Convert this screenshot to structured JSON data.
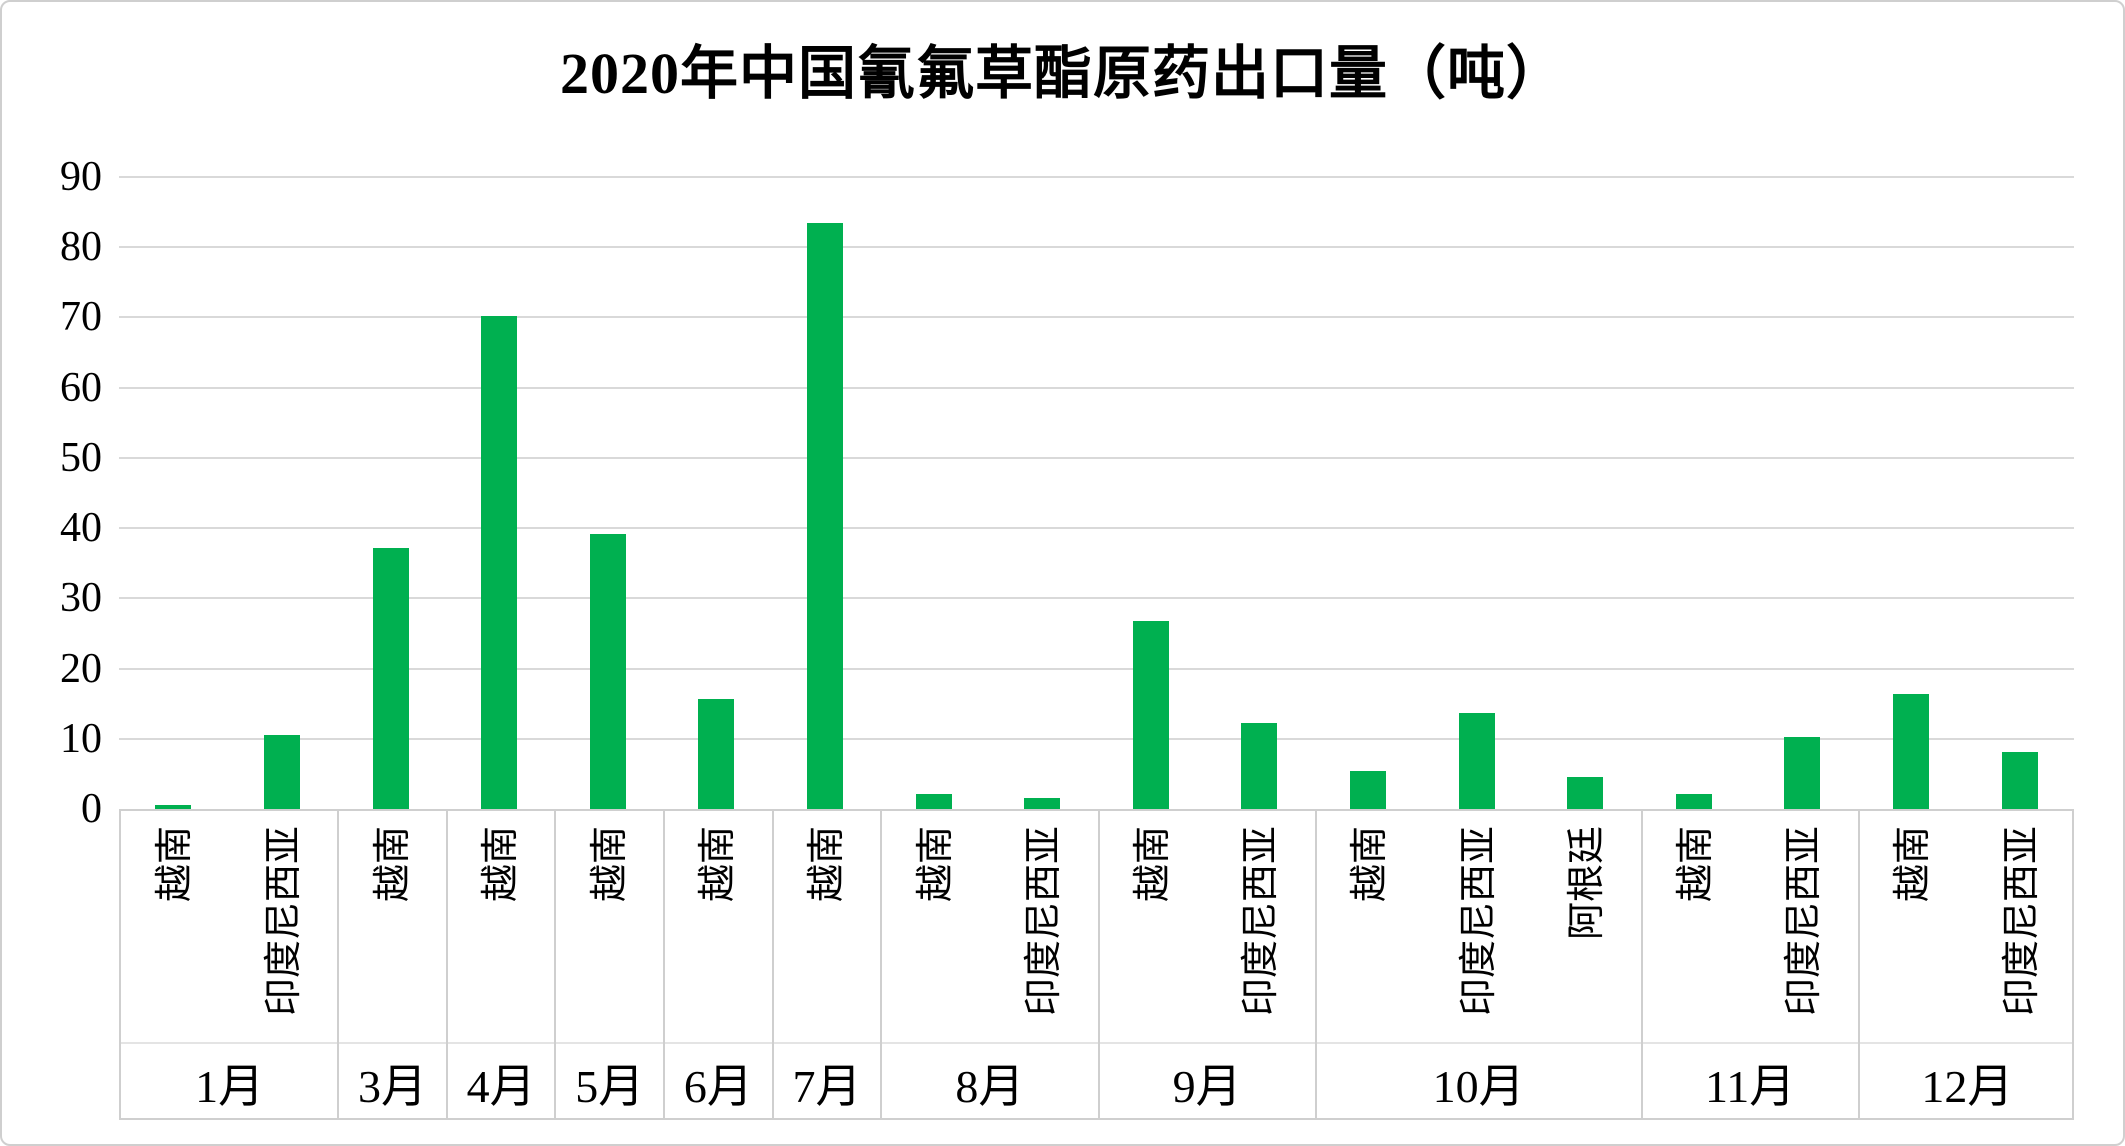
{
  "chart_data": {
    "type": "bar",
    "title": "2020年中国氰氟草酯原药出口量（吨）",
    "ylabel": "",
    "xlabel": "",
    "ylim": [
      0,
      90
    ],
    "ytick_step": 10,
    "ytick_labels": [
      "0",
      "10",
      "20",
      "30",
      "40",
      "50",
      "60",
      "70",
      "80",
      "90"
    ],
    "grid": "horizontal",
    "legend": "none",
    "bar_color": "#00b050",
    "gridline_color": "#d9d9d9",
    "axis_box_color": "#cfcfcf",
    "background_color": "#ffffff",
    "x_axis_tiers": [
      "country",
      "month"
    ],
    "groups": [
      {
        "month": "1月",
        "bars": [
          {
            "country": "越南",
            "value": 0.5
          },
          {
            "country": "印度尼西亚",
            "value": 10.5
          }
        ]
      },
      {
        "month": "3月",
        "bars": [
          {
            "country": "越南",
            "value": 37.1
          }
        ]
      },
      {
        "month": "4月",
        "bars": [
          {
            "country": "越南",
            "value": 70.2
          }
        ]
      },
      {
        "month": "5月",
        "bars": [
          {
            "country": "越南",
            "value": 39.2
          }
        ]
      },
      {
        "month": "6月",
        "bars": [
          {
            "country": "越南",
            "value": 15.6
          }
        ]
      },
      {
        "month": "7月",
        "bars": [
          {
            "country": "越南",
            "value": 83.4
          }
        ]
      },
      {
        "month": "8月",
        "bars": [
          {
            "country": "越南",
            "value": 2.1
          },
          {
            "country": "印度尼西亚",
            "value": 1.5
          }
        ]
      },
      {
        "month": "9月",
        "bars": [
          {
            "country": "越南",
            "value": 26.8
          },
          {
            "country": "印度尼西亚",
            "value": 12.3
          }
        ]
      },
      {
        "month": "10月",
        "bars": [
          {
            "country": "越南",
            "value": 5.4
          },
          {
            "country": "印度尼西亚",
            "value": 13.7
          },
          {
            "country": "阿根廷",
            "value": 4.6
          }
        ]
      },
      {
        "month": "11月",
        "bars": [
          {
            "country": "越南",
            "value": 2.1
          },
          {
            "country": "印度尼西亚",
            "value": 10.2
          }
        ]
      },
      {
        "month": "12月",
        "bars": [
          {
            "country": "越南",
            "value": 16.4
          },
          {
            "country": "印度尼西亚",
            "value": 8.1
          }
        ]
      }
    ]
  }
}
